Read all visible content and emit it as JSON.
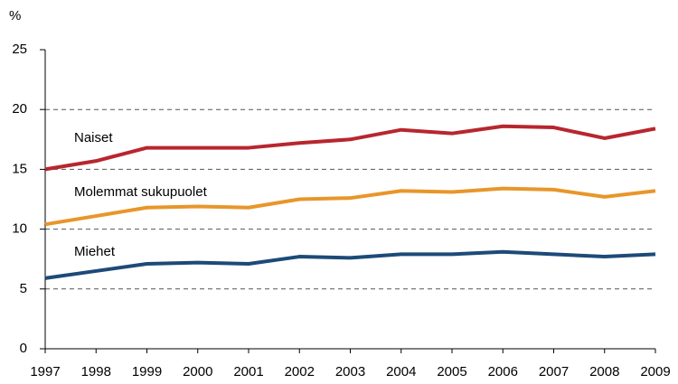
{
  "chart_data": {
    "type": "line",
    "y_label": "%",
    "x": [
      1997,
      1998,
      1999,
      2000,
      2001,
      2002,
      2003,
      2004,
      2005,
      2006,
      2007,
      2008,
      2009
    ],
    "xlim": [
      1997,
      2009
    ],
    "xticks": [
      1997,
      1998,
      1999,
      2000,
      2001,
      2002,
      2003,
      2004,
      2005,
      2006,
      2007,
      2008,
      2009
    ],
    "ylim": [
      0,
      25
    ],
    "yticks": [
      0,
      5,
      10,
      15,
      20,
      25
    ],
    "grid": true,
    "series": [
      {
        "name": "Naiset",
        "color": "#b8262e",
        "values": [
          15.0,
          15.7,
          16.8,
          16.8,
          16.8,
          17.2,
          17.5,
          18.3,
          18.0,
          18.6,
          18.5,
          17.6,
          18.4
        ]
      },
      {
        "name": "Molemmat sukupuolet",
        "color": "#e8962a",
        "values": [
          10.4,
          11.1,
          11.8,
          11.9,
          11.8,
          12.5,
          12.6,
          13.2,
          13.1,
          13.4,
          13.3,
          12.7,
          13.2
        ]
      },
      {
        "name": "Miehet",
        "color": "#1d4a78",
        "values": [
          5.9,
          6.5,
          7.1,
          7.2,
          7.1,
          7.7,
          7.6,
          7.9,
          7.9,
          8.1,
          7.9,
          7.7,
          7.9
        ]
      }
    ]
  }
}
